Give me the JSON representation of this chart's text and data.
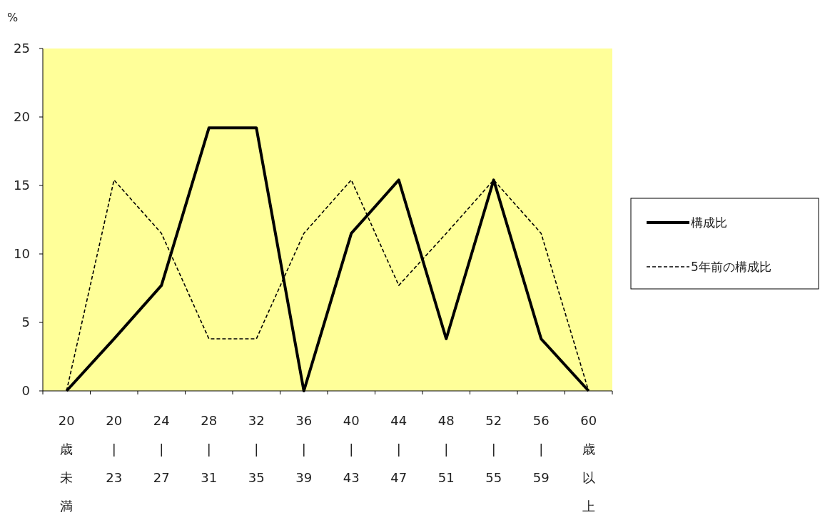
{
  "chart_data": {
    "type": "line",
    "ylabel": "%",
    "categories": [
      "20歳未満",
      "20|23",
      "24|27",
      "28|31",
      "32|35",
      "36|39",
      "40|43",
      "44|47",
      "48|51",
      "52|55",
      "56|59",
      "60歳以上"
    ],
    "series": [
      {
        "name": "構成比",
        "color": "#000000",
        "line_style": "solid",
        "values": [
          0,
          3.8,
          7.7,
          19.2,
          19.2,
          0,
          11.5,
          15.4,
          3.8,
          15.4,
          3.8,
          0
        ]
      },
      {
        "name": "5年前の構成比",
        "color": "#000000",
        "line_style": "dashed",
        "values": [
          0,
          15.4,
          11.5,
          3.8,
          3.8,
          11.5,
          15.4,
          7.7,
          11.5,
          15.4,
          11.5,
          0
        ]
      }
    ],
    "ylim": [
      0,
      25
    ],
    "yticks": [
      0,
      5,
      10,
      15,
      20,
      25
    ],
    "grid": false,
    "legend": "right",
    "marker": "none"
  }
}
